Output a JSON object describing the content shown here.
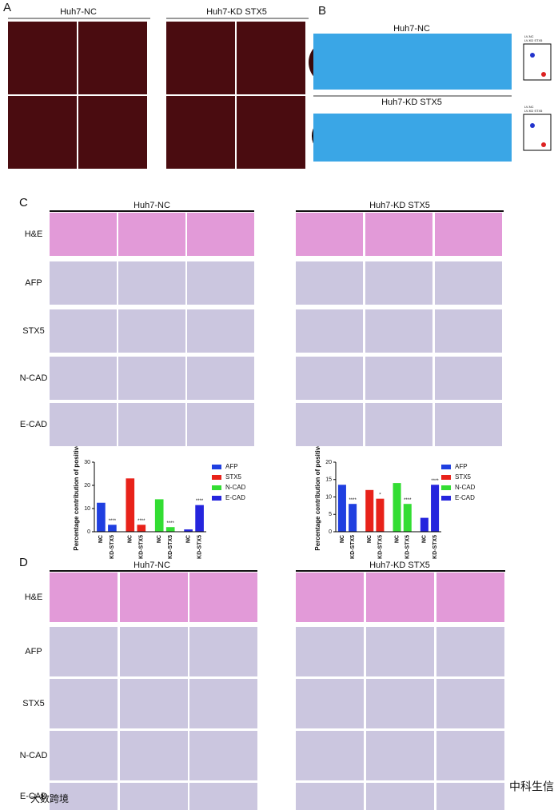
{
  "labels": [
    "A",
    "B",
    "C",
    "D"
  ],
  "groups": [
    "Huh7-NC",
    "Huh7-KD STX5"
  ],
  "stains": [
    "H&E",
    "AFP",
    "STX5",
    "N-CAD",
    "E-CAD"
  ],
  "inset_legend": [
    "LV-NC",
    "LV-KD STX5"
  ],
  "watermarks": [
    "中科生信",
    "大数跨境"
  ],
  "chart_data": [
    {
      "type": "bar",
      "y_label": "Percentage contribution of positive",
      "categories": [
        "NC",
        "KD-STX5",
        "NC",
        "KD-STX5",
        "NC",
        "KD-STX5",
        "NC",
        "KD-STX5"
      ],
      "ylim": [
        0,
        30
      ],
      "yticks": [
        0,
        10,
        20,
        30
      ],
      "series": [
        {
          "name": "AFP",
          "color": "#1f3fe0",
          "values": [
            12.5,
            3,
            null,
            null,
            null,
            null,
            null,
            null
          ],
          "significance": [
            null,
            "****",
            null,
            null,
            null,
            null,
            null,
            null
          ]
        },
        {
          "name": "STX5",
          "color": "#e8221a",
          "values": [
            null,
            null,
            23,
            3,
            null,
            null,
            null,
            null
          ],
          "significance": [
            null,
            null,
            null,
            "****",
            null,
            null,
            null,
            null
          ]
        },
        {
          "name": "N-CAD",
          "color": "#33dd33",
          "values": [
            null,
            null,
            null,
            null,
            14,
            2,
            null,
            null
          ],
          "significance": [
            null,
            null,
            null,
            null,
            null,
            "****",
            null,
            null
          ]
        },
        {
          "name": "E-CAD",
          "color": "#2525dd",
          "values": [
            null,
            null,
            null,
            null,
            null,
            null,
            1,
            11.5
          ],
          "significance": [
            null,
            null,
            null,
            null,
            null,
            null,
            null,
            "****"
          ]
        }
      ]
    },
    {
      "type": "bar",
      "y_label": "Percentage contribution of positive",
      "categories": [
        "NC",
        "KD-STX5",
        "NC",
        "KD-STX5",
        "NC",
        "KD-STX5",
        "NC",
        "KD-STX5"
      ],
      "ylim": [
        0,
        20
      ],
      "yticks": [
        0,
        5,
        10,
        15,
        20
      ],
      "series": [
        {
          "name": "AFP",
          "color": "#1f3fe0",
          "values": [
            13.5,
            8,
            null,
            null,
            null,
            null,
            null,
            null
          ],
          "significance": [
            null,
            "****",
            null,
            null,
            null,
            null,
            null,
            null
          ]
        },
        {
          "name": "STX5",
          "color": "#e8221a",
          "values": [
            null,
            null,
            12,
            9.5,
            null,
            null,
            null,
            null
          ],
          "significance": [
            null,
            null,
            null,
            "*",
            null,
            null,
            null,
            null
          ]
        },
        {
          "name": "N-CAD",
          "color": "#33dd33",
          "values": [
            null,
            null,
            null,
            null,
            14,
            8,
            null,
            null
          ],
          "significance": [
            null,
            null,
            null,
            null,
            null,
            "****",
            null,
            null
          ]
        },
        {
          "name": "E-CAD",
          "color": "#2525dd",
          "values": [
            null,
            null,
            null,
            null,
            null,
            null,
            4,
            13.5
          ],
          "significance": [
            null,
            null,
            null,
            null,
            null,
            null,
            null,
            "****"
          ]
        }
      ]
    }
  ]
}
